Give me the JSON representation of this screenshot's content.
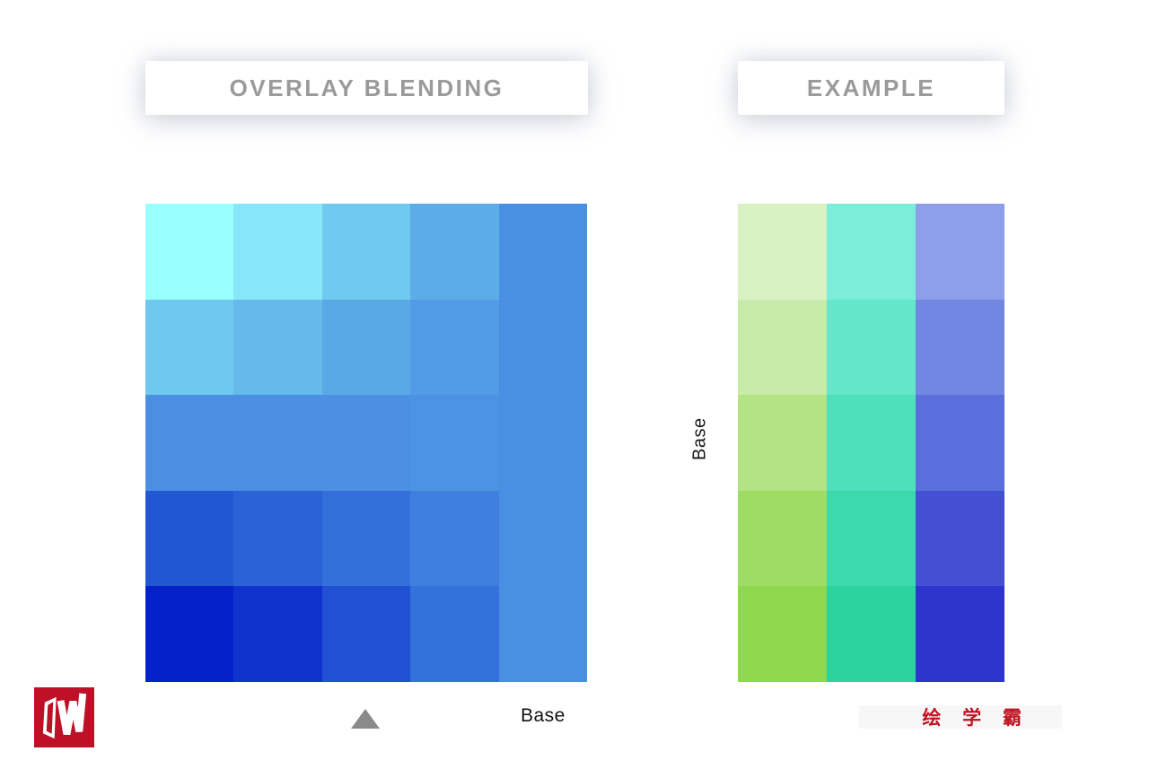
{
  "page": {
    "background": "#FFFFFF"
  },
  "header": {
    "left_title": "OVERLAY BLENDING",
    "right_title": "EXAMPLE",
    "title_color": "#9A9A9A"
  },
  "blend_grid": {
    "description": "5x5 matrix of overlay blend results, blend color #4A90E2; base goes light-to-dark top-to-bottom and left-to-right",
    "rows": 5,
    "cols": 5,
    "cells": [
      [
        "#99FFFF",
        "#87E6F8",
        "#70C9EF",
        "#5CACE8",
        "#4A90E2"
      ],
      [
        "#6FC8EE",
        "#63BAEB",
        "#5AA9E7",
        "#529CE5",
        "#4A90E2"
      ],
      [
        "#4A8FE2",
        "#4A8FE2",
        "#4B90E2",
        "#4D93E3",
        "#4A90E2"
      ],
      [
        "#2257D2",
        "#2B63D6",
        "#3370DA",
        "#3F80DF",
        "#4A90E2"
      ],
      [
        "#0521C9",
        "#1133CD",
        "#2050D3",
        "#3472DB",
        "#4A90E2"
      ]
    ]
  },
  "example_grid": {
    "description": "5x3 example swatches: green, teal and blue-violet columns darkening downward",
    "rows": 5,
    "cols": 3,
    "cells": [
      [
        "#D9F2C4",
        "#7BEDD9",
        "#8C9FE8"
      ],
      [
        "#C9EBAA",
        "#63E6C9",
        "#7287E2"
      ],
      [
        "#B3E384",
        "#4EDFBB",
        "#5B6FDC"
      ],
      [
        "#9EDC64",
        "#3BD9AB",
        "#4450D4"
      ],
      [
        "#8ED94E",
        "#2BD39E",
        "#2E35CC"
      ]
    ]
  },
  "labels": {
    "base_axis_vertical": "Base",
    "base_axis_bottom": "Base",
    "pointer_color": "#8A8A8A"
  },
  "watermark": {
    "text": "绘 学 霸",
    "color": "#C0121F"
  },
  "logo": {
    "background": "#BE1128",
    "glyph": "W"
  }
}
